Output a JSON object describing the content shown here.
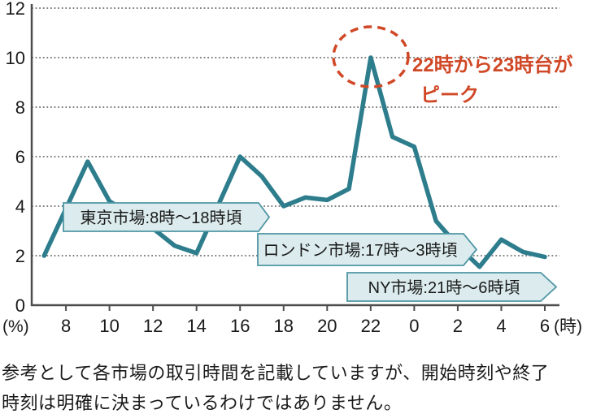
{
  "chart_data": {
    "type": "line",
    "title": "",
    "x_axis_unit": "(時)",
    "y_axis_unit": "(%)",
    "x": [
      7,
      8,
      9,
      10,
      11,
      12,
      13,
      14,
      15,
      16,
      17,
      18,
      19,
      20,
      21,
      22,
      23,
      0,
      1,
      2,
      3,
      4,
      5,
      6
    ],
    "series": [
      {
        "name": "hourly-trading-share",
        "values": [
          2.0,
          3.9,
          5.8,
          4.2,
          3.65,
          3.1,
          2.4,
          2.1,
          4.05,
          6.0,
          5.2,
          4.0,
          4.35,
          4.25,
          4.7,
          10.0,
          6.8,
          6.4,
          3.4,
          2.4,
          1.55,
          2.65,
          2.15,
          1.95
        ]
      }
    ],
    "y_ticks": [
      0,
      2,
      4,
      6,
      8,
      10,
      12
    ],
    "x_tick_labels": [
      "8",
      "10",
      "12",
      "14",
      "16",
      "18",
      "20",
      "22",
      "0",
      "2",
      "4",
      "6"
    ],
    "ylim": [
      0,
      12
    ],
    "grid": "dotted-horizontal",
    "legend": "none"
  },
  "annotations": {
    "peak_note": {
      "line1": "22時から23時台が",
      "line2": "ピーク"
    },
    "callouts": [
      {
        "id": "tokyo",
        "label": "東京市場:8時〜18時頃"
      },
      {
        "id": "london",
        "label": "ロンドン市場:17時〜3時頃"
      },
      {
        "id": "ny",
        "label": "NY市場:21時〜6時頃"
      }
    ]
  },
  "footer": {
    "line1": "参考として各市場の取引時間を記載していますが、開始時刻や終了",
    "line2": "時刻は明確に決まっているわけではありません。"
  },
  "colors": {
    "line": "#2d7d8d",
    "axis": "#4d4d4d",
    "grid": "#828282",
    "label": "#1a1a1a",
    "callout_fill": "#dcecee",
    "callout_border": "#4f96a4",
    "peak": "#d04826"
  }
}
